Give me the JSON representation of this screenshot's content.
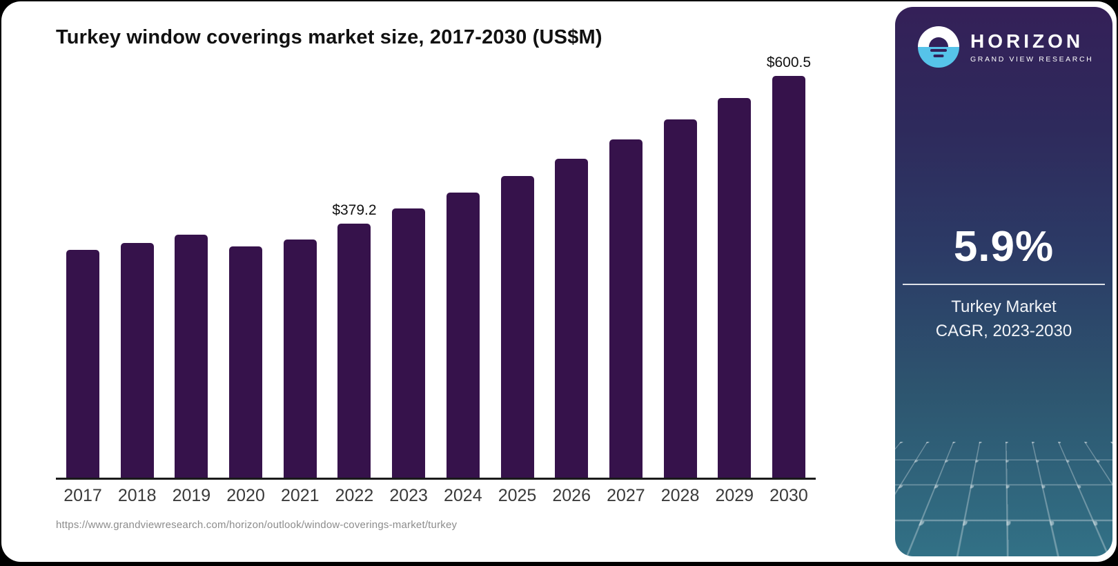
{
  "chart_data": {
    "type": "bar",
    "title": "Turkey window coverings market size, 2017-2030 (US$M)",
    "categories": [
      "2017",
      "2018",
      "2019",
      "2020",
      "2021",
      "2022",
      "2023",
      "2024",
      "2025",
      "2026",
      "2027",
      "2028",
      "2029",
      "2030"
    ],
    "values": [
      340,
      351,
      363,
      346,
      356,
      379.2,
      402,
      426,
      451,
      477,
      506,
      535,
      567,
      600.5
    ],
    "point_labels": {
      "2022": "$379.2",
      "2030": "$600.5"
    },
    "xlabel": "",
    "ylabel": "US$M",
    "ylim": [
      0,
      600.5
    ],
    "grid": false,
    "legend": false,
    "bar_color": "#36124B"
  },
  "source_url": "https://www.grandviewresearch.com/horizon/outlook/window-coverings-market/turkey",
  "sidebar": {
    "logo": {
      "brand": "HORIZON",
      "subbrand": "GRAND VIEW RESEARCH",
      "icon": "horizon-sun-icon"
    },
    "stat_value": "5.9%",
    "stat_label_line1": "Turkey Market",
    "stat_label_line2": "CAGR, 2023-2030",
    "colors": {
      "gradient_top": "#342058",
      "gradient_mid": "#2C3B66",
      "gradient_bottom": "#327186",
      "logo_blue": "#56C3E9"
    }
  },
  "colors": {
    "bar": "#36124B",
    "axis": "#1A1A1A",
    "title_text": "#111111",
    "tick_text": "#3A3A3A",
    "source_text": "#8C8C8C",
    "card_background": "#FFFFFF",
    "page_background": "#000000"
  }
}
